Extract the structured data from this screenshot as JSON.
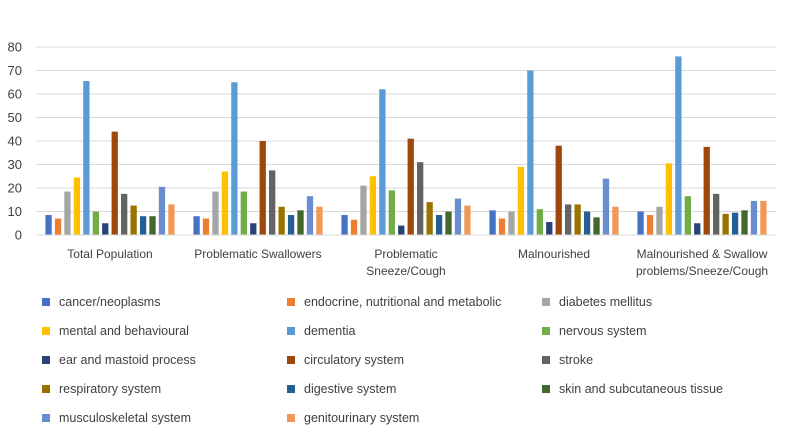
{
  "chart_data": {
    "type": "bar",
    "title": "",
    "xlabel": "",
    "ylabel": "",
    "ylim": [
      0,
      80
    ],
    "yticks": [
      0,
      10,
      20,
      30,
      40,
      50,
      60,
      70,
      80
    ],
    "grid": true,
    "legend_position": "bottom",
    "categories": [
      [
        "Total Population"
      ],
      [
        "Problematic Swallowers"
      ],
      [
        "Problematic",
        "Sneeze/Cough"
      ],
      [
        "Malnourished"
      ],
      [
        "Malnourished & Swallow",
        "problems/Sneeze/Cough"
      ]
    ],
    "series": [
      {
        "name": "cancer/neoplasms",
        "color": "#4472C4",
        "values": [
          8.5,
          8,
          8.5,
          10.5,
          10
        ]
      },
      {
        "name": "endocrine, nutritional and metabolic",
        "color": "#ED7D31",
        "values": [
          7,
          7,
          6.5,
          7,
          8.5
        ]
      },
      {
        "name": "diabetes mellitus",
        "color": "#A5A5A5",
        "values": [
          18.5,
          18.5,
          21,
          10,
          12
        ]
      },
      {
        "name": "mental and behavioural",
        "color": "#FFC000",
        "values": [
          24.5,
          27,
          25,
          29,
          30.5
        ]
      },
      {
        "name": "dementia",
        "color": "#5B9BD5",
        "values": [
          65.5,
          65,
          62,
          70,
          76
        ]
      },
      {
        "name": "nervous system",
        "color": "#70AD47",
        "values": [
          10,
          18.5,
          19,
          11,
          16.5
        ]
      },
      {
        "name": "ear and mastoid process",
        "color": "#264478",
        "values": [
          5,
          5,
          4,
          5.5,
          5
        ]
      },
      {
        "name": "circulatory system",
        "color": "#9E480E",
        "values": [
          44,
          40,
          41,
          38,
          37.5
        ]
      },
      {
        "name": "stroke",
        "color": "#636363",
        "values": [
          17.5,
          27.5,
          31,
          13,
          17.5
        ]
      },
      {
        "name": "respiratory system",
        "color": "#997300",
        "values": [
          12.5,
          12,
          14,
          13,
          9
        ]
      },
      {
        "name": "digestive system",
        "color": "#255E91",
        "values": [
          8,
          8.5,
          8.5,
          10,
          9.5
        ]
      },
      {
        "name": "skin and subcutaneous tissue",
        "color": "#43682B",
        "values": [
          8,
          10.5,
          10,
          7.5,
          10.5
        ]
      },
      {
        "name": "musculoskeletal system",
        "color": "#698ED0",
        "values": [
          20.5,
          16.5,
          15.5,
          24,
          14.5
        ]
      },
      {
        "name": "genitourinary system",
        "color": "#F1975A",
        "values": [
          13,
          12,
          12.5,
          12,
          14.5
        ]
      }
    ]
  }
}
